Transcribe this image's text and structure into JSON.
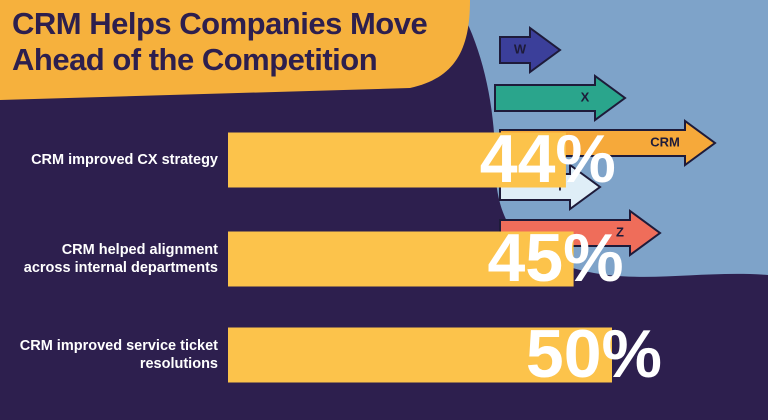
{
  "chart_data": {
    "type": "bar",
    "orientation": "horizontal",
    "title": "CRM Helps Companies Move Ahead of the Competition",
    "categories": [
      "CRM improved CX strategy",
      "CRM helped alignment across internal departments",
      "CRM improved service ticket resolutions"
    ],
    "values": [
      44,
      45,
      50
    ],
    "value_labels": [
      "44%",
      "45%",
      "50%"
    ],
    "color": "#fcc34b"
  },
  "illustration": {
    "arrows": [
      "W",
      "X",
      "CRM",
      "Y",
      "Z"
    ]
  }
}
